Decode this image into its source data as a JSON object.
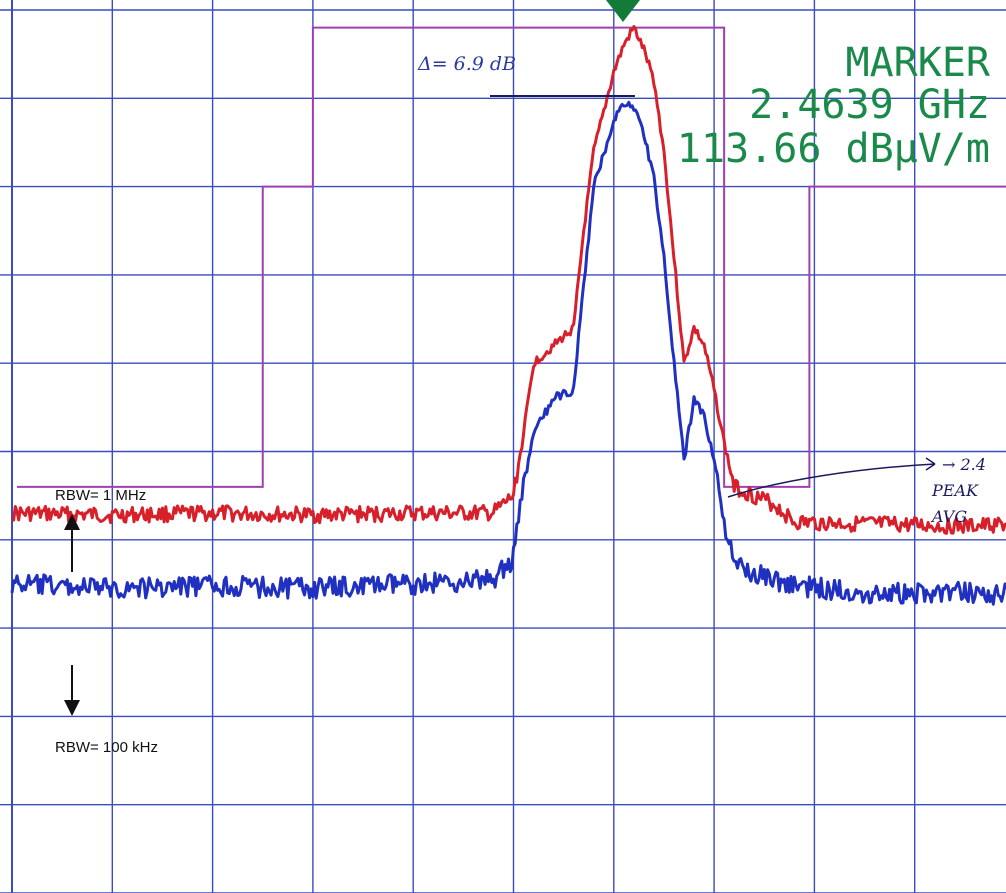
{
  "chart_data": {
    "type": "line",
    "title": "",
    "xlabel": "",
    "ylabel": "",
    "grid": true,
    "marker": {
      "title": "MARKER",
      "frequency": "2.4639 GHz",
      "level": "113.66 dBμV/m",
      "position_x_div": 6.1
    },
    "delta_label": "Δ= 6.9 dB",
    "rbw_labels": {
      "upper": "RBW= 1 MHz",
      "lower": "RBW= 100 kHz"
    },
    "note": {
      "line1": "→ 2.4",
      "line2": "PEAK",
      "line3": "AVG"
    },
    "limit_mask": {
      "name": "limit",
      "color": "#a040b0",
      "points": [
        [
          0.05,
          5.4
        ],
        [
          2.5,
          5.4
        ],
        [
          2.5,
          2.0
        ],
        [
          3.0,
          2.0
        ],
        [
          3.0,
          0.2
        ],
        [
          7.1,
          0.2
        ],
        [
          7.1,
          5.4
        ],
        [
          7.95,
          5.4
        ],
        [
          7.95,
          2.0
        ],
        [
          10.0,
          2.0
        ]
      ]
    },
    "series": [
      {
        "name": "RBW= 1 MHz",
        "color": "#d8202a",
        "points": [
          [
            0.0,
            5.7
          ],
          [
            1.0,
            5.72
          ],
          [
            2.0,
            5.7
          ],
          [
            3.0,
            5.72
          ],
          [
            4.0,
            5.7
          ],
          [
            4.8,
            5.7
          ],
          [
            5.0,
            5.5
          ],
          [
            5.1,
            4.8
          ],
          [
            5.2,
            4.0
          ],
          [
            5.4,
            3.8
          ],
          [
            5.6,
            3.6
          ],
          [
            5.7,
            2.5
          ],
          [
            5.8,
            1.6
          ],
          [
            6.0,
            0.7
          ],
          [
            6.1,
            0.4
          ],
          [
            6.2,
            0.2
          ],
          [
            6.3,
            0.45
          ],
          [
            6.4,
            0.8
          ],
          [
            6.5,
            1.6
          ],
          [
            6.6,
            2.8
          ],
          [
            6.7,
            4.0
          ],
          [
            6.8,
            3.6
          ],
          [
            6.9,
            3.8
          ],
          [
            7.0,
            4.3
          ],
          [
            7.1,
            4.9
          ],
          [
            7.2,
            5.4
          ],
          [
            7.6,
            5.6
          ],
          [
            7.8,
            5.8
          ],
          [
            8.5,
            5.82
          ],
          [
            9.5,
            5.85
          ],
          [
            10.0,
            5.82
          ]
        ]
      },
      {
        "name": "RBW= 100 kHz",
        "color": "#2030c0",
        "points": [
          [
            0.0,
            6.5
          ],
          [
            1.0,
            6.55
          ],
          [
            2.0,
            6.52
          ],
          [
            3.0,
            6.55
          ],
          [
            4.0,
            6.5
          ],
          [
            4.8,
            6.45
          ],
          [
            5.0,
            6.2
          ],
          [
            5.1,
            5.4
          ],
          [
            5.2,
            4.8
          ],
          [
            5.4,
            4.4
          ],
          [
            5.6,
            4.3
          ],
          [
            5.65,
            3.7
          ],
          [
            5.8,
            2.0
          ],
          [
            6.0,
            1.25
          ],
          [
            6.1,
            1.05
          ],
          [
            6.2,
            1.1
          ],
          [
            6.3,
            1.4
          ],
          [
            6.4,
            1.9
          ],
          [
            6.5,
            2.8
          ],
          [
            6.6,
            4.0
          ],
          [
            6.7,
            5.1
          ],
          [
            6.8,
            4.4
          ],
          [
            6.9,
            4.6
          ],
          [
            7.0,
            5.1
          ],
          [
            7.1,
            5.8
          ],
          [
            7.2,
            6.3
          ],
          [
            7.5,
            6.4
          ],
          [
            7.7,
            6.5
          ],
          [
            8.5,
            6.6
          ],
          [
            9.5,
            6.6
          ],
          [
            10.0,
            6.62
          ]
        ]
      }
    ],
    "x_divisions": 10,
    "y_divisions": 10
  }
}
